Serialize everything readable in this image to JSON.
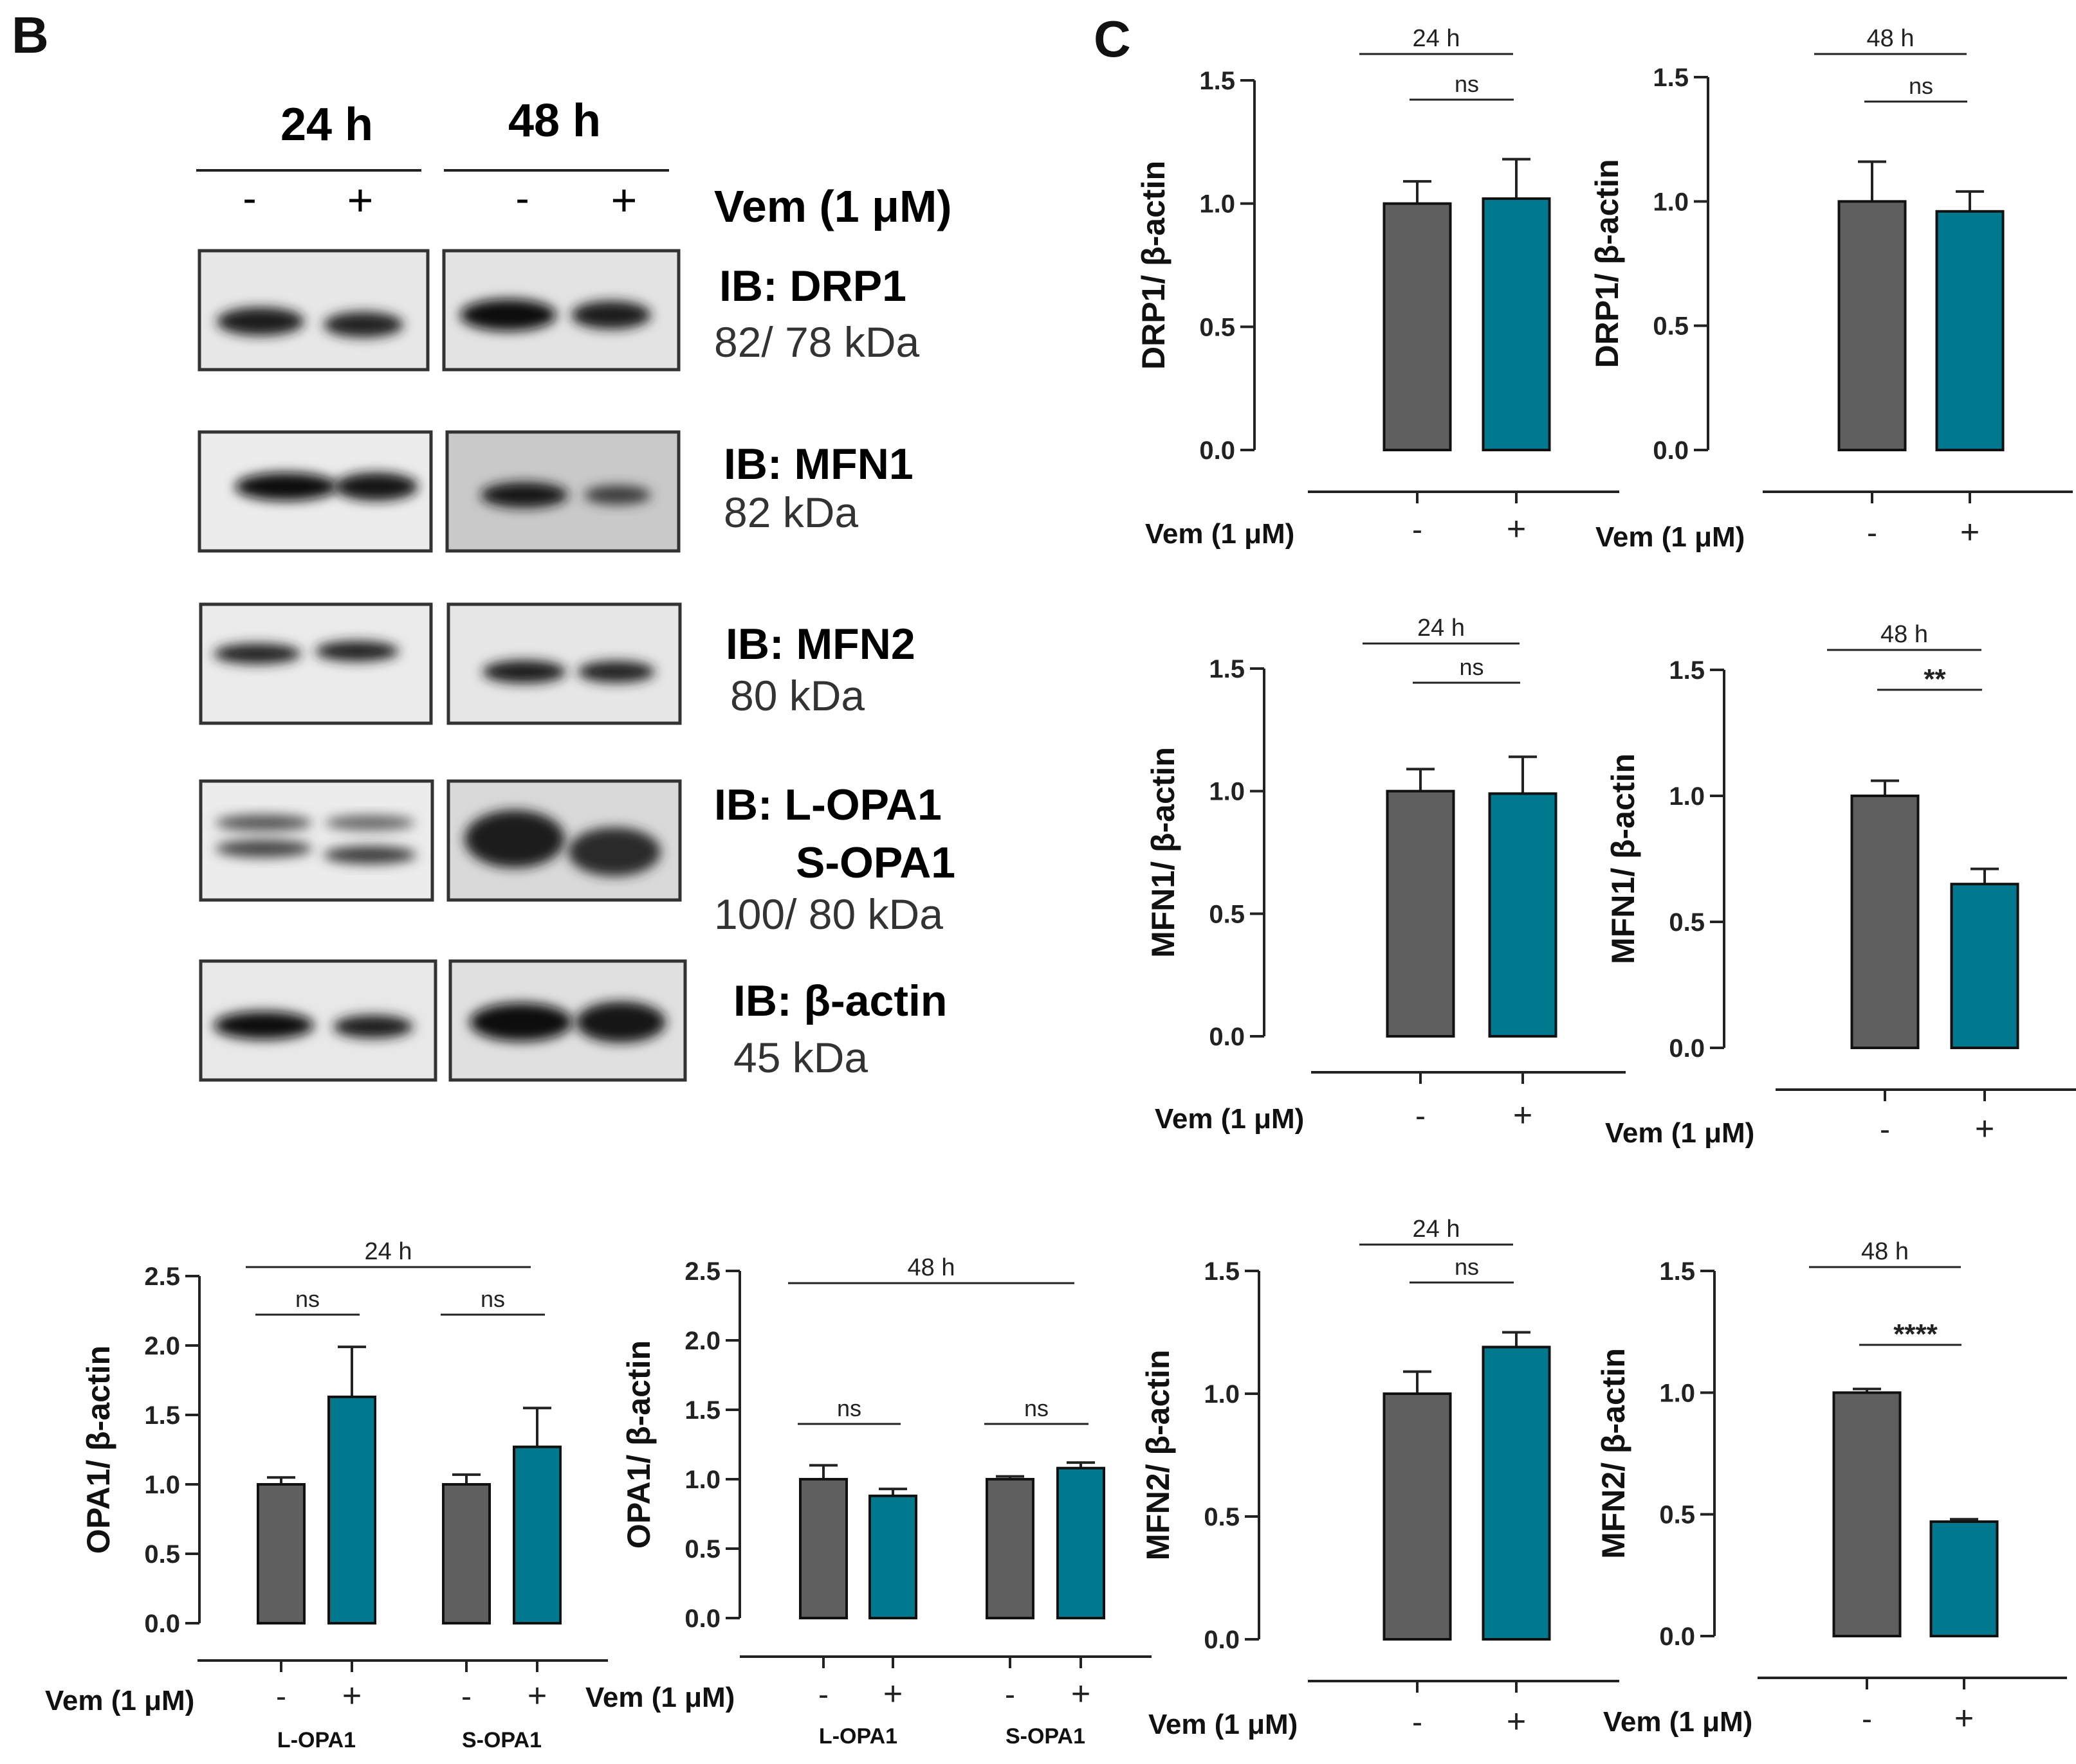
{
  "panels": {
    "b_label": "B",
    "c_label": "C"
  },
  "blot": {
    "time_headers": [
      "24 h",
      "48 h"
    ],
    "signs": [
      "-",
      "+",
      "-",
      "+"
    ],
    "treatment_label": "Vem (1 μM)",
    "rows": [
      {
        "ib": "IB: DRP1",
        "ib2": "",
        "kda": "82/ 78 kDa"
      },
      {
        "ib": "IB: MFN1",
        "ib2": "",
        "kda": "82 kDa"
      },
      {
        "ib": "IB: MFN2",
        "ib2": "",
        "kda": "80 kDa"
      },
      {
        "ib": "IB: L-OPA1",
        "ib2": "S-OPA1",
        "kda": "100/ 80 kDa"
      },
      {
        "ib": "IB: β-actin",
        "ib2": "",
        "kda": "45 kDa"
      }
    ]
  },
  "colors": {
    "control": "#5f5f5f",
    "vem": "#00798f",
    "axis": "#222222"
  },
  "chart_data": [
    {
      "id": "drp1_24h",
      "type": "bar",
      "title": "24 h",
      "ylabel": "DRP1/ β-actin",
      "ylim": [
        0,
        1.5
      ],
      "yticks": [
        0.0,
        0.5,
        1.0,
        1.5
      ],
      "ytick_labels": [
        "0.0",
        "0.5",
        "1.0",
        "1.5"
      ],
      "xlabel": "Vem (1 μM)",
      "categories": [
        "-",
        "+"
      ],
      "groups": [],
      "values": [
        1.0,
        1.02
      ],
      "errors": [
        0.09,
        0.16
      ],
      "significance": [
        {
          "label": "ns",
          "from": 0,
          "to": 1
        }
      ]
    },
    {
      "id": "drp1_48h",
      "type": "bar",
      "title": "48 h",
      "ylabel": "DRP1/ β-actin",
      "ylim": [
        0,
        1.5
      ],
      "yticks": [
        0.0,
        0.5,
        1.0,
        1.5
      ],
      "ytick_labels": [
        "0.0",
        "0.5",
        "1.0",
        "1.5"
      ],
      "xlabel": "Vem (1 μM)",
      "categories": [
        "-",
        "+"
      ],
      "groups": [],
      "values": [
        1.0,
        0.96
      ],
      "errors": [
        0.16,
        0.08
      ],
      "significance": [
        {
          "label": "ns",
          "from": 0,
          "to": 1
        }
      ]
    },
    {
      "id": "mfn1_24h",
      "type": "bar",
      "title": "24 h",
      "ylabel": "MFN1/ β-actin",
      "ylim": [
        0,
        1.5
      ],
      "yticks": [
        0.0,
        0.5,
        1.0,
        1.5
      ],
      "ytick_labels": [
        "0.0",
        "0.5",
        "1.0",
        "1.5"
      ],
      "xlabel": "Vem (1 μM)",
      "categories": [
        "-",
        "+"
      ],
      "groups": [],
      "values": [
        1.0,
        0.99
      ],
      "errors": [
        0.09,
        0.15
      ],
      "significance": [
        {
          "label": "ns",
          "from": 0,
          "to": 1
        }
      ]
    },
    {
      "id": "mfn1_48h",
      "type": "bar",
      "title": "48 h",
      "ylabel": "MFN1/ β-actin",
      "ylim": [
        0,
        1.5
      ],
      "yticks": [
        0.0,
        0.5,
        1.0,
        1.5
      ],
      "ytick_labels": [
        "0.0",
        "0.5",
        "1.0",
        "1.5"
      ],
      "xlabel": "Vem (1 μM)",
      "categories": [
        "-",
        "+"
      ],
      "groups": [],
      "values": [
        1.0,
        0.65
      ],
      "errors": [
        0.06,
        0.06
      ],
      "significance": [
        {
          "label": "**",
          "from": 0,
          "to": 1
        }
      ]
    },
    {
      "id": "mfn2_24h",
      "type": "bar",
      "title": "24 h",
      "ylabel": "MFN2/ β-actin",
      "ylim": [
        0,
        1.5
      ],
      "yticks": [
        0.0,
        0.5,
        1.0,
        1.5
      ],
      "ytick_labels": [
        "0.0",
        "0.5",
        "1.0",
        "1.5"
      ],
      "xlabel": "Vem (1 μM)",
      "categories": [
        "-",
        "+"
      ],
      "groups": [],
      "values": [
        1.0,
        1.19
      ],
      "errors": [
        0.09,
        0.06
      ],
      "significance": [
        {
          "label": "ns",
          "from": 0,
          "to": 1
        }
      ]
    },
    {
      "id": "mfn2_48h",
      "type": "bar",
      "title": "48 h",
      "ylabel": "MFN2/ β-actin",
      "ylim": [
        0,
        1.5
      ],
      "yticks": [
        0.0,
        0.5,
        1.0,
        1.5
      ],
      "ytick_labels": [
        "0.0",
        "0.5",
        "1.0",
        "1.5"
      ],
      "xlabel": "Vem (1 μM)",
      "categories": [
        "-",
        "+"
      ],
      "groups": [],
      "values": [
        1.0,
        0.47
      ],
      "errors": [
        0.015,
        0.01
      ],
      "significance": [
        {
          "label": "****",
          "from": 0,
          "to": 1
        }
      ]
    },
    {
      "id": "opa1_24h",
      "type": "bar",
      "title": "24 h",
      "ylabel": "OPA1/ β-actin",
      "ylim": [
        0,
        2.5
      ],
      "yticks": [
        0.0,
        0.5,
        1.0,
        1.5,
        2.0,
        2.5
      ],
      "ytick_labels": [
        "0.0",
        "0.5",
        "1.0",
        "1.5",
        "2.0",
        "2.5"
      ],
      "xlabel": "Vem (1 μM)",
      "categories": [
        "-",
        "+",
        "-",
        "+"
      ],
      "groups": [
        "L-OPA1",
        "S-OPA1"
      ],
      "values": [
        1.0,
        1.63,
        1.0,
        1.27
      ],
      "errors": [
        0.05,
        0.36,
        0.07,
        0.28
      ],
      "significance": [
        {
          "label": "ns",
          "from": 0,
          "to": 1
        },
        {
          "label": "ns",
          "from": 2,
          "to": 3
        }
      ]
    },
    {
      "id": "opa1_48h",
      "type": "bar",
      "title": "48 h",
      "ylabel": "OPA1/ β-actin",
      "ylim": [
        0,
        2.5
      ],
      "yticks": [
        0.0,
        0.5,
        1.0,
        1.5,
        2.0,
        2.5
      ],
      "ytick_labels": [
        "0.0",
        "0.5",
        "1.0",
        "1.5",
        "2.0",
        "2.5"
      ],
      "xlabel": "Vem (1 μM)",
      "categories": [
        "-",
        "+",
        "-",
        "+"
      ],
      "groups": [
        "L-OPA1",
        "S-OPA1"
      ],
      "values": [
        1.0,
        0.88,
        1.0,
        1.08
      ],
      "errors": [
        0.1,
        0.05,
        0.02,
        0.04
      ],
      "significance": [
        {
          "label": "ns",
          "from": 0,
          "to": 1
        },
        {
          "label": "ns",
          "from": 2,
          "to": 3
        }
      ]
    }
  ]
}
